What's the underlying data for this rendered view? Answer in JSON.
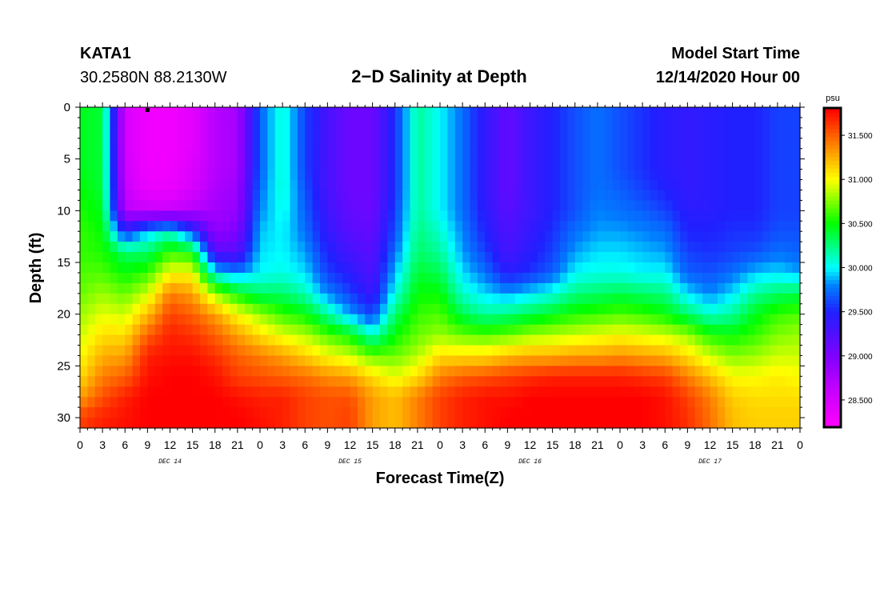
{
  "header": {
    "station": "KATA1",
    "coordinates": "30.2580N 88.2130W",
    "title": "2−D Salinity at Depth",
    "model_start_label": "Model Start Time",
    "model_start_value": "12/14/2020 Hour 00"
  },
  "chart_data": {
    "type": "heatmap",
    "title": "2−D Salinity at Depth",
    "xlabel": "Forecast Time(Z)",
    "ylabel": "Depth (ft)",
    "x_tick_labels": [
      "0",
      "3",
      "6",
      "9",
      "12",
      "15",
      "18",
      "21",
      "0",
      "3",
      "6",
      "9",
      "12",
      "15",
      "18",
      "21",
      "0",
      "3",
      "6",
      "9",
      "12",
      "15",
      "18",
      "21",
      "0",
      "3",
      "6",
      "9",
      "12",
      "15",
      "18",
      "21",
      "0"
    ],
    "day_labels": [
      "DEC 14",
      "DEC 15",
      "DEC 16",
      "DEC 17"
    ],
    "x_range_hours": [
      0,
      96
    ],
    "y_ticks": [
      0,
      5,
      10,
      15,
      20,
      25,
      30
    ],
    "y_range_ft": [
      0,
      31
    ],
    "depth_levels_ft": [
      0,
      2,
      4,
      6,
      8,
      10,
      12,
      14,
      16,
      18,
      20,
      22,
      24,
      26,
      28,
      30
    ],
    "colorbar": {
      "unit": "psu",
      "tick_labels": [
        "31.500",
        "31.000",
        "30.500",
        "30.000",
        "29.500",
        "29.000",
        "28.500"
      ],
      "tick_values": [
        31.5,
        31.0,
        30.5,
        30.0,
        29.5,
        29.0,
        28.5
      ],
      "range": [
        28.2,
        31.8
      ],
      "stops": [
        {
          "v": 28.2,
          "c": "#ff00ff"
        },
        {
          "v": 28.6,
          "c": "#c800ff"
        },
        {
          "v": 29.0,
          "c": "#8000ff"
        },
        {
          "v": 29.5,
          "c": "#2020ff"
        },
        {
          "v": 29.8,
          "c": "#0080ff"
        },
        {
          "v": 30.0,
          "c": "#00ffff"
        },
        {
          "v": 30.5,
          "c": "#00ff00"
        },
        {
          "v": 31.0,
          "c": "#ffff00"
        },
        {
          "v": 31.3,
          "c": "#ffa000"
        },
        {
          "v": 31.55,
          "c": "#ff5000"
        },
        {
          "v": 31.8,
          "c": "#ff0000"
        }
      ]
    },
    "profiles": [
      {
        "hour": 0,
        "values": [
          30.45,
          30.45,
          30.45,
          30.45,
          30.5,
          30.55,
          30.6,
          30.6,
          30.65,
          30.7,
          30.8,
          30.9,
          31.0,
          31.1,
          31.3,
          31.6
        ]
      },
      {
        "hour": 3,
        "values": [
          30.4,
          30.4,
          30.4,
          30.4,
          30.4,
          30.45,
          30.5,
          30.55,
          30.65,
          30.8,
          30.95,
          31.1,
          31.25,
          31.4,
          31.55,
          31.7
        ]
      },
      {
        "hour": 6,
        "values": [
          28.5,
          28.5,
          28.5,
          28.55,
          28.6,
          28.7,
          29.5,
          30.3,
          30.5,
          30.7,
          30.9,
          31.1,
          31.3,
          31.5,
          31.7,
          31.75
        ]
      },
      {
        "hour": 9,
        "values": [
          28.3,
          28.3,
          28.3,
          28.3,
          28.35,
          28.6,
          29.9,
          30.3,
          30.6,
          30.9,
          31.2,
          31.5,
          31.7,
          31.75,
          31.8,
          31.8
        ]
      },
      {
        "hour": 12,
        "values": [
          28.3,
          28.3,
          28.3,
          28.3,
          28.35,
          28.6,
          30.1,
          30.6,
          31.0,
          31.4,
          31.6,
          31.7,
          31.75,
          31.8,
          31.8,
          31.8
        ]
      },
      {
        "hour": 15,
        "values": [
          28.4,
          28.4,
          28.4,
          28.45,
          28.5,
          28.7,
          29.6,
          30.5,
          31.0,
          31.3,
          31.5,
          31.65,
          31.75,
          31.8,
          31.8,
          31.8
        ]
      },
      {
        "hour": 18,
        "values": [
          28.7,
          28.7,
          28.7,
          28.7,
          28.75,
          28.8,
          28.9,
          29.2,
          30.0,
          30.8,
          31.3,
          31.5,
          31.65,
          31.75,
          31.8,
          31.8
        ]
      },
      {
        "hour": 21,
        "values": [
          28.8,
          28.8,
          28.8,
          28.8,
          28.85,
          28.9,
          29.0,
          29.2,
          29.8,
          30.5,
          31.0,
          31.3,
          31.5,
          31.6,
          31.75,
          31.8
        ]
      },
      {
        "hour": 24,
        "values": [
          29.7,
          29.7,
          29.7,
          29.7,
          29.75,
          29.8,
          29.9,
          29.95,
          30.0,
          30.3,
          30.8,
          31.1,
          31.4,
          31.55,
          31.7,
          31.75
        ]
      },
      {
        "hour": 27,
        "values": [
          30.1,
          30.1,
          30.1,
          30.1,
          30.1,
          30.05,
          30.0,
          30.0,
          30.05,
          30.3,
          30.6,
          30.95,
          31.3,
          31.5,
          31.7,
          31.7
        ]
      },
      {
        "hour": 30,
        "values": [
          29.6,
          29.6,
          29.6,
          29.6,
          29.65,
          29.7,
          29.75,
          29.85,
          29.95,
          30.15,
          30.5,
          30.85,
          31.15,
          31.45,
          31.6,
          31.6
        ]
      },
      {
        "hour": 33,
        "values": [
          29.3,
          29.3,
          29.3,
          29.3,
          29.3,
          29.35,
          29.4,
          29.5,
          29.6,
          29.8,
          30.2,
          30.65,
          31.0,
          31.35,
          31.55,
          31.55
        ]
      },
      {
        "hour": 36,
        "values": [
          29.1,
          29.1,
          29.1,
          29.1,
          29.1,
          29.15,
          29.2,
          29.3,
          29.45,
          29.6,
          29.85,
          30.5,
          30.9,
          31.3,
          31.55,
          31.6
        ]
      },
      {
        "hour": 39,
        "values": [
          29.1,
          29.1,
          29.1,
          29.1,
          29.1,
          29.1,
          29.15,
          29.2,
          29.25,
          29.35,
          29.6,
          30.1,
          30.7,
          31.1,
          31.3,
          31.3
        ]
      },
      {
        "hour": 42,
        "values": [
          29.55,
          29.55,
          29.55,
          29.55,
          29.55,
          29.6,
          29.65,
          29.75,
          29.9,
          30.05,
          30.3,
          30.5,
          30.7,
          30.95,
          31.2,
          31.2
        ]
      },
      {
        "hour": 45,
        "values": [
          30.2,
          30.2,
          30.2,
          30.2,
          30.2,
          30.2,
          30.25,
          30.3,
          30.4,
          30.5,
          30.6,
          30.7,
          30.85,
          31.1,
          31.4,
          31.4
        ]
      },
      {
        "hour": 48,
        "values": [
          30.0,
          30.0,
          30.0,
          30.0,
          30.0,
          30.0,
          30.1,
          30.2,
          30.35,
          30.5,
          30.65,
          30.8,
          31.1,
          31.4,
          31.6,
          31.6
        ]
      },
      {
        "hour": 51,
        "values": [
          29.75,
          29.75,
          29.75,
          29.75,
          29.75,
          29.75,
          29.8,
          29.85,
          29.95,
          30.1,
          30.35,
          30.7,
          31.1,
          31.5,
          31.7,
          31.7
        ]
      },
      {
        "hour": 54,
        "values": [
          29.4,
          29.4,
          29.4,
          29.4,
          29.4,
          29.45,
          29.5,
          29.6,
          29.75,
          29.95,
          30.2,
          30.65,
          31.1,
          31.55,
          31.75,
          31.75
        ]
      },
      {
        "hour": 57,
        "values": [
          29.15,
          29.15,
          29.15,
          29.15,
          29.15,
          29.2,
          29.25,
          29.3,
          29.45,
          29.85,
          30.25,
          30.7,
          31.2,
          31.6,
          31.75,
          31.8
        ]
      },
      {
        "hour": 60,
        "values": [
          29.35,
          29.35,
          29.35,
          29.35,
          29.35,
          29.35,
          29.4,
          29.45,
          29.55,
          29.95,
          30.35,
          30.8,
          31.25,
          31.65,
          31.8,
          31.8
        ]
      },
      {
        "hour": 63,
        "values": [
          29.5,
          29.5,
          29.5,
          29.5,
          29.5,
          29.5,
          29.55,
          29.6,
          29.7,
          30.05,
          30.45,
          30.85,
          31.25,
          31.7,
          31.8,
          31.8
        ]
      },
      {
        "hour": 66,
        "values": [
          29.65,
          29.65,
          29.65,
          29.65,
          29.65,
          29.65,
          29.75,
          29.85,
          30.0,
          30.25,
          30.55,
          30.9,
          31.3,
          31.7,
          31.8,
          31.8
        ]
      },
      {
        "hour": 69,
        "values": [
          29.75,
          29.75,
          29.75,
          29.75,
          29.75,
          29.8,
          29.85,
          29.95,
          30.05,
          30.3,
          30.6,
          30.95,
          31.3,
          31.7,
          31.8,
          31.8
        ]
      },
      {
        "hour": 72,
        "values": [
          29.65,
          29.65,
          29.65,
          29.65,
          29.7,
          29.75,
          29.85,
          29.95,
          30.05,
          30.35,
          30.65,
          31.0,
          31.35,
          31.7,
          31.8,
          31.8
        ]
      },
      {
        "hour": 75,
        "values": [
          29.55,
          29.55,
          29.55,
          29.55,
          29.6,
          29.7,
          29.8,
          29.9,
          30.0,
          30.3,
          30.6,
          30.95,
          31.3,
          31.65,
          31.8,
          31.8
        ]
      },
      {
        "hour": 78,
        "values": [
          29.45,
          29.45,
          29.45,
          29.45,
          29.5,
          29.6,
          29.75,
          29.85,
          30.0,
          30.25,
          30.5,
          30.9,
          31.25,
          31.6,
          31.75,
          31.75
        ]
      },
      {
        "hour": 81,
        "values": [
          29.4,
          29.4,
          29.4,
          29.4,
          29.4,
          29.45,
          29.5,
          29.6,
          29.7,
          29.95,
          30.3,
          30.8,
          31.1,
          31.4,
          31.6,
          31.65
        ]
      },
      {
        "hour": 84,
        "values": [
          29.45,
          29.45,
          29.45,
          29.45,
          29.45,
          29.45,
          29.5,
          29.55,
          29.65,
          29.8,
          30.1,
          30.55,
          30.9,
          31.2,
          31.4,
          31.45
        ]
      },
      {
        "hour": 87,
        "values": [
          29.5,
          29.5,
          29.5,
          29.5,
          29.5,
          29.5,
          29.55,
          29.6,
          29.75,
          29.95,
          30.2,
          30.5,
          30.75,
          31.0,
          31.15,
          31.2
        ]
      },
      {
        "hour": 90,
        "values": [
          29.5,
          29.5,
          29.5,
          29.5,
          29.5,
          29.5,
          29.55,
          29.65,
          29.9,
          30.2,
          30.45,
          30.6,
          30.8,
          31.0,
          31.1,
          31.15
        ]
      },
      {
        "hour": 93,
        "values": [
          29.6,
          29.6,
          29.6,
          29.6,
          29.6,
          29.6,
          29.65,
          29.75,
          29.95,
          30.3,
          30.6,
          30.75,
          30.9,
          31.05,
          31.1,
          31.15
        ]
      },
      {
        "hour": 96,
        "values": [
          29.6,
          29.6,
          29.6,
          29.6,
          29.6,
          29.6,
          29.65,
          29.7,
          29.85,
          30.35,
          30.65,
          30.8,
          30.9,
          31.0,
          31.1,
          31.15
        ]
      }
    ],
    "marker": {
      "hour": 9,
      "depth_ft": 0
    }
  }
}
